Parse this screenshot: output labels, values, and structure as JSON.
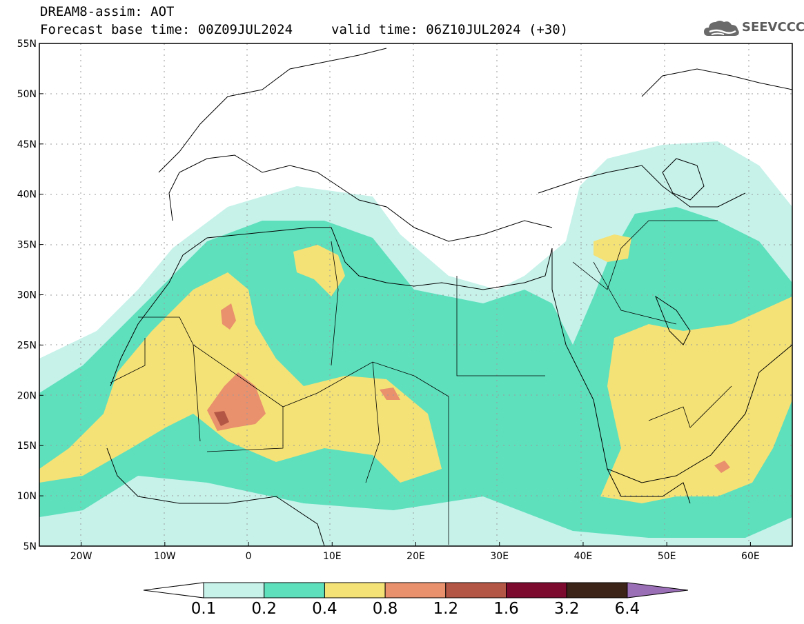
{
  "header": {
    "title": "DREAM8-assim: AOT",
    "base_time": "Forecast base time: 00Z09JUL2024",
    "valid_time": "valid time: 06Z10JUL2024 (+30)"
  },
  "logo": {
    "text": "SEEVCCC",
    "icon": "cloud-icon"
  },
  "map": {
    "lon_range": [
      -25,
      65
    ],
    "lat_range": [
      5,
      55
    ],
    "lon_ticks": [
      {
        "value": -20,
        "label": "20W"
      },
      {
        "value": -10,
        "label": "10W"
      },
      {
        "value": 0,
        "label": "0"
      },
      {
        "value": 10,
        "label": "10E"
      },
      {
        "value": 20,
        "label": "20E"
      },
      {
        "value": 30,
        "label": "30E"
      },
      {
        "value": 40,
        "label": "40E"
      },
      {
        "value": 50,
        "label": "50E"
      },
      {
        "value": 60,
        "label": "60E"
      }
    ],
    "lat_ticks": [
      {
        "value": 5,
        "label": "5N"
      },
      {
        "value": 10,
        "label": "10N"
      },
      {
        "value": 15,
        "label": "15N"
      },
      {
        "value": 20,
        "label": "20N"
      },
      {
        "value": 25,
        "label": "25N"
      },
      {
        "value": 30,
        "label": "30N"
      },
      {
        "value": 35,
        "label": "35N"
      },
      {
        "value": 40,
        "label": "40N"
      },
      {
        "value": 45,
        "label": "45N"
      },
      {
        "value": 50,
        "label": "50N"
      },
      {
        "value": 55,
        "label": "55N"
      }
    ]
  },
  "colorbar": {
    "labels": [
      "0.1",
      "0.2",
      "0.4",
      "0.8",
      "1.2",
      "1.6",
      "3.2",
      "6.4"
    ],
    "colors": [
      "#c6f2ea",
      "#5ee0bd",
      "#f4e276",
      "#e9906c",
      "#b45645",
      "#7c0a2e",
      "#3c2419",
      "#9b6fb5"
    ]
  }
}
